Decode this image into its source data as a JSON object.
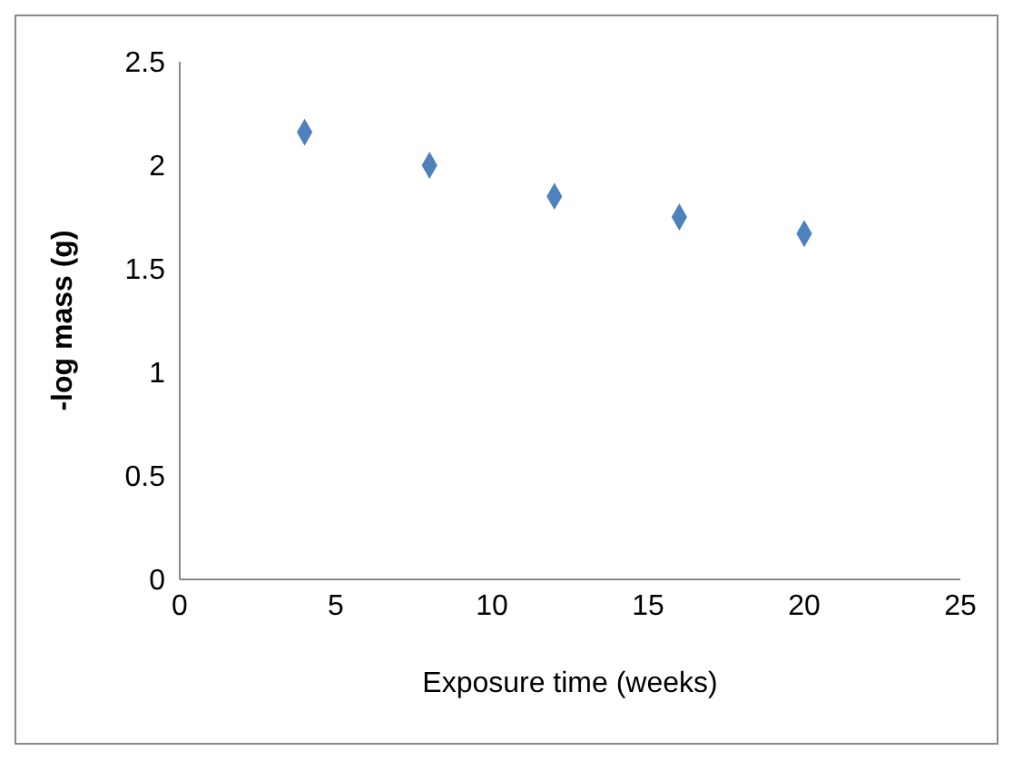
{
  "chart_data": {
    "type": "scatter",
    "xlabel": "Exposure time (weeks)",
    "ylabel": "-log mass (g)",
    "x": [
      4,
      8,
      12,
      16,
      20
    ],
    "series": [
      {
        "color": "#4f81bd",
        "values": [
          2.16,
          2.0,
          1.85,
          1.75,
          1.67
        ]
      }
    ],
    "xlim": [
      0,
      25
    ],
    "xticks": [
      0,
      5,
      10,
      15,
      20,
      25
    ],
    "ylim": [
      0,
      2.5
    ],
    "yticks": [
      0,
      0.5,
      1,
      1.5,
      2,
      2.5
    ],
    "grid": false,
    "legend": false,
    "marker": "diamond"
  }
}
